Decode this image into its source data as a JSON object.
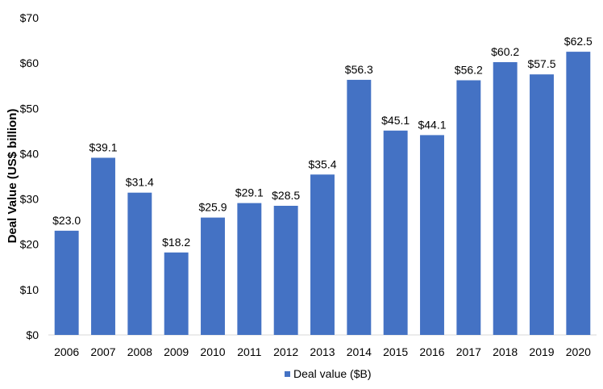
{
  "chart_data": {
    "type": "bar",
    "categories": [
      "2006",
      "2007",
      "2008",
      "2009",
      "2010",
      "2011",
      "2012",
      "2013",
      "2014",
      "2015",
      "2016",
      "2017",
      "2018",
      "2019",
      "2020"
    ],
    "series": [
      {
        "name": "Deal value ($B)",
        "values": [
          23.0,
          39.1,
          31.4,
          18.2,
          25.9,
          29.1,
          28.5,
          35.4,
          56.3,
          45.1,
          44.1,
          56.2,
          60.2,
          57.5,
          62.5
        ],
        "data_labels": [
          "$23.0",
          "$39.1",
          "$31.4",
          "$18.2",
          "$25.9",
          "$29.1",
          "$28.5",
          "$35.4",
          "$56.3",
          "$45.1",
          "$44.1",
          "$56.2",
          "$60.2",
          "$57.5",
          "$62.5"
        ],
        "color": "#4472C4"
      }
    ],
    "title": "",
    "xlabel": "",
    "ylabel": "Deal Value (US$ billion)",
    "ylim": [
      0,
      70
    ],
    "yticks": [
      0,
      10,
      20,
      30,
      40,
      50,
      60,
      70
    ],
    "ytick_labels": [
      "$0",
      "$10",
      "$20",
      "$30",
      "$40",
      "$50",
      "$60",
      "$70"
    ],
    "grid": false,
    "legend": {
      "position": "bottom",
      "entries": [
        "Deal value ($B)"
      ]
    }
  }
}
